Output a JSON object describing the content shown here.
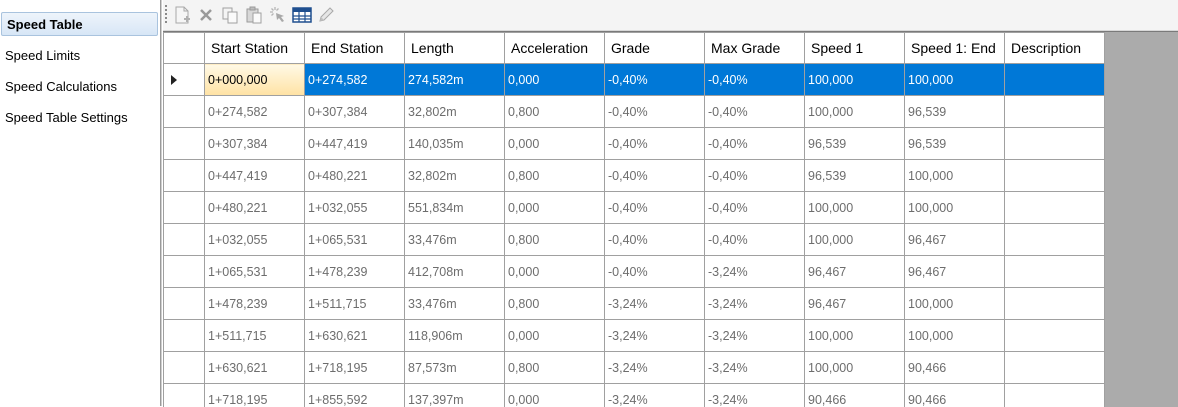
{
  "sidebar": {
    "items": [
      {
        "label": "Speed Table",
        "active": true
      },
      {
        "label": "Speed Limits"
      },
      {
        "label": "Speed Calculations"
      },
      {
        "label": "Speed Table Settings"
      }
    ]
  },
  "toolbar": {
    "tools": [
      {
        "name": "add-row-icon"
      },
      {
        "name": "delete-icon"
      },
      {
        "name": "copy-icon"
      },
      {
        "name": "paste-icon"
      },
      {
        "name": "select-icon"
      },
      {
        "name": "table-icon"
      },
      {
        "name": "edit-icon"
      }
    ]
  },
  "grid": {
    "columns": [
      "Start Station",
      "End Station",
      "Length",
      "Acceleration",
      "Grade",
      "Max Grade",
      "Speed 1",
      "Speed 1: End",
      "Description"
    ],
    "rows": [
      [
        "0+000,000",
        "0+274,582",
        "274,582m",
        "0,000",
        "-0,40%",
        "-0,40%",
        "100,000",
        "100,000",
        ""
      ],
      [
        "0+274,582",
        "0+307,384",
        "32,802m",
        "0,800",
        "-0,40%",
        "-0,40%",
        "100,000",
        "96,539",
        ""
      ],
      [
        "0+307,384",
        "0+447,419",
        "140,035m",
        "0,000",
        "-0,40%",
        "-0,40%",
        "96,539",
        "96,539",
        ""
      ],
      [
        "0+447,419",
        "0+480,221",
        "32,802m",
        "0,800",
        "-0,40%",
        "-0,40%",
        "96,539",
        "100,000",
        ""
      ],
      [
        "0+480,221",
        "1+032,055",
        "551,834m",
        "0,000",
        "-0,40%",
        "-0,40%",
        "100,000",
        "100,000",
        ""
      ],
      [
        "1+032,055",
        "1+065,531",
        "33,476m",
        "0,800",
        "-0,40%",
        "-0,40%",
        "100,000",
        "96,467",
        ""
      ],
      [
        "1+065,531",
        "1+478,239",
        "412,708m",
        "0,000",
        "-0,40%",
        "-3,24%",
        "96,467",
        "96,467",
        ""
      ],
      [
        "1+478,239",
        "1+511,715",
        "33,476m",
        "0,800",
        "-3,24%",
        "-3,24%",
        "96,467",
        "100,000",
        ""
      ],
      [
        "1+511,715",
        "1+630,621",
        "118,906m",
        "0,000",
        "-3,24%",
        "-3,24%",
        "100,000",
        "100,000",
        ""
      ],
      [
        "1+630,621",
        "1+718,195",
        "87,573m",
        "0,800",
        "-3,24%",
        "-3,24%",
        "100,000",
        "90,466",
        ""
      ],
      [
        "1+718,195",
        "1+855,592",
        "137,397m",
        "0,000",
        "-3,24%",
        "-3,24%",
        "90,466",
        "90,466",
        ""
      ]
    ],
    "selected_row": 0,
    "current_column": 0,
    "selection_color": "#0078d7"
  }
}
